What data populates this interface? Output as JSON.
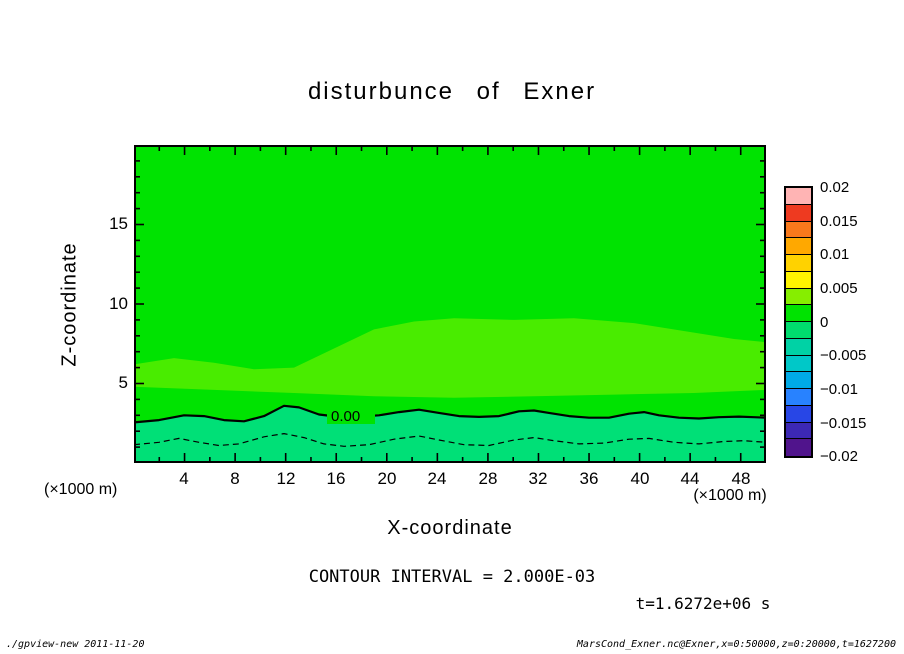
{
  "title": "disturbunce of Exner",
  "axes": {
    "x": {
      "label": "X-coordinate",
      "unit": "(×1000 m)",
      "ticks": [
        "4",
        "8",
        "12",
        "16",
        "20",
        "24",
        "28",
        "32",
        "36",
        "40",
        "44",
        "48"
      ]
    },
    "z": {
      "label": "Z-coordinate",
      "unit": "(×1000 m)",
      "ticks": [
        "15",
        "10",
        "5"
      ]
    }
  },
  "colorbar": {
    "labels": [
      "0.02",
      "0.015",
      "0.01",
      "0.005",
      "0",
      "−0.005",
      "−0.01",
      "−0.015",
      "−0.02"
    ],
    "colors": [
      "#ffb4b4",
      "#ee3a20",
      "#f8791c",
      "#ffa800",
      "#ffd200",
      "#fff400",
      "#86ee00",
      "#00e301",
      "#00dc6e",
      "#00d2a5",
      "#00c8c8",
      "#00aae6",
      "#2882ff",
      "#2846e6",
      "#3c28b4",
      "#50148c"
    ]
  },
  "colors": {
    "field_base": "#00e301",
    "field_light": "#49ec00",
    "field_below_zero": "#00e077",
    "contour": "#000000"
  },
  "annotations": {
    "contour_interval": "CONTOUR INTERVAL = 2.000E-03",
    "time": "t=1.6272e+06 s",
    "zero_contour_label": "0.00"
  },
  "footer": {
    "left": "./gpview-new  2011-11-20",
    "right": "MarsCond_Exner.nc@Exner,x=0:50000,z=0:20000,t=1627200"
  },
  "chart_data": {
    "type": "heatmap",
    "subtype": "filled-contour",
    "title": "disturbunce of Exner",
    "xlabel": "X-coordinate (×1000 m)",
    "ylabel": "Z-coordinate (×1000 m)",
    "xlim": [
      0,
      50
    ],
    "ylim": [
      0,
      20
    ],
    "x_ticks": [
      4,
      8,
      12,
      16,
      20,
      24,
      28,
      32,
      36,
      40,
      44,
      48
    ],
    "z_ticks": [
      5,
      10,
      15
    ],
    "colorbar_range": [
      -0.02,
      0.02
    ],
    "colorbar_tick_step": 0.005,
    "contour_interval": 0.002,
    "time": "t=1.6272e+06 s",
    "field_description": "Exner function disturbance: near-zero (bright green, 0 to 0.002) over most of the domain; slightly higher band (0.002–0.004, lighter green) between z≈4.5 and z≈9; weakly negative below the wavy 0.00 contour at z≈3; dashed contour ≈ −0.002 at z≈1–1.9",
    "zero_contour": {
      "style": "solid",
      "label": "0.00",
      "approx_height_km": [
        2.6,
        3.6
      ]
    },
    "negative_contour": {
      "style": "dashed",
      "value": -0.002,
      "approx_height_km": [
        1.0,
        1.9
      ]
    },
    "legend_position": "right-colorbar",
    "grid": false
  }
}
